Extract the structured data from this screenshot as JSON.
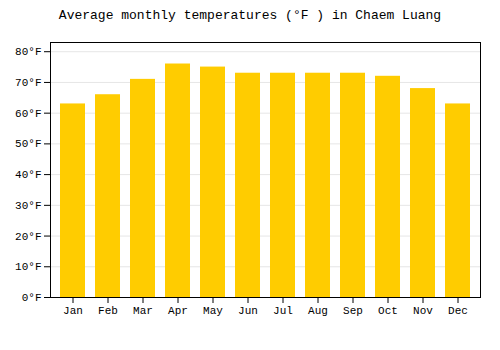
{
  "chart_data": {
    "type": "bar",
    "title": "Average monthly temperatures (°F ) in Chaem Luang",
    "categories": [
      "Jan",
      "Feb",
      "Mar",
      "Apr",
      "May",
      "Jun",
      "Jul",
      "Aug",
      "Sep",
      "Oct",
      "Nov",
      "Dec"
    ],
    "values": [
      63,
      66,
      71,
      76,
      75,
      73,
      73,
      73,
      73,
      72,
      68,
      63
    ],
    "color": "#FFCC00",
    "ylim": [
      0,
      83
    ],
    "yticks": [
      {
        "value": 0,
        "label": "0°F"
      },
      {
        "value": 10,
        "label": "10°F"
      },
      {
        "value": 20,
        "label": "20°F"
      },
      {
        "value": 30,
        "label": "30°F"
      },
      {
        "value": 40,
        "label": "40°F"
      },
      {
        "value": 50,
        "label": "50°F"
      },
      {
        "value": 60,
        "label": "60°F"
      },
      {
        "value": 70,
        "label": "70°F"
      },
      {
        "value": 80,
        "label": "80°F"
      }
    ],
    "grid": true
  }
}
